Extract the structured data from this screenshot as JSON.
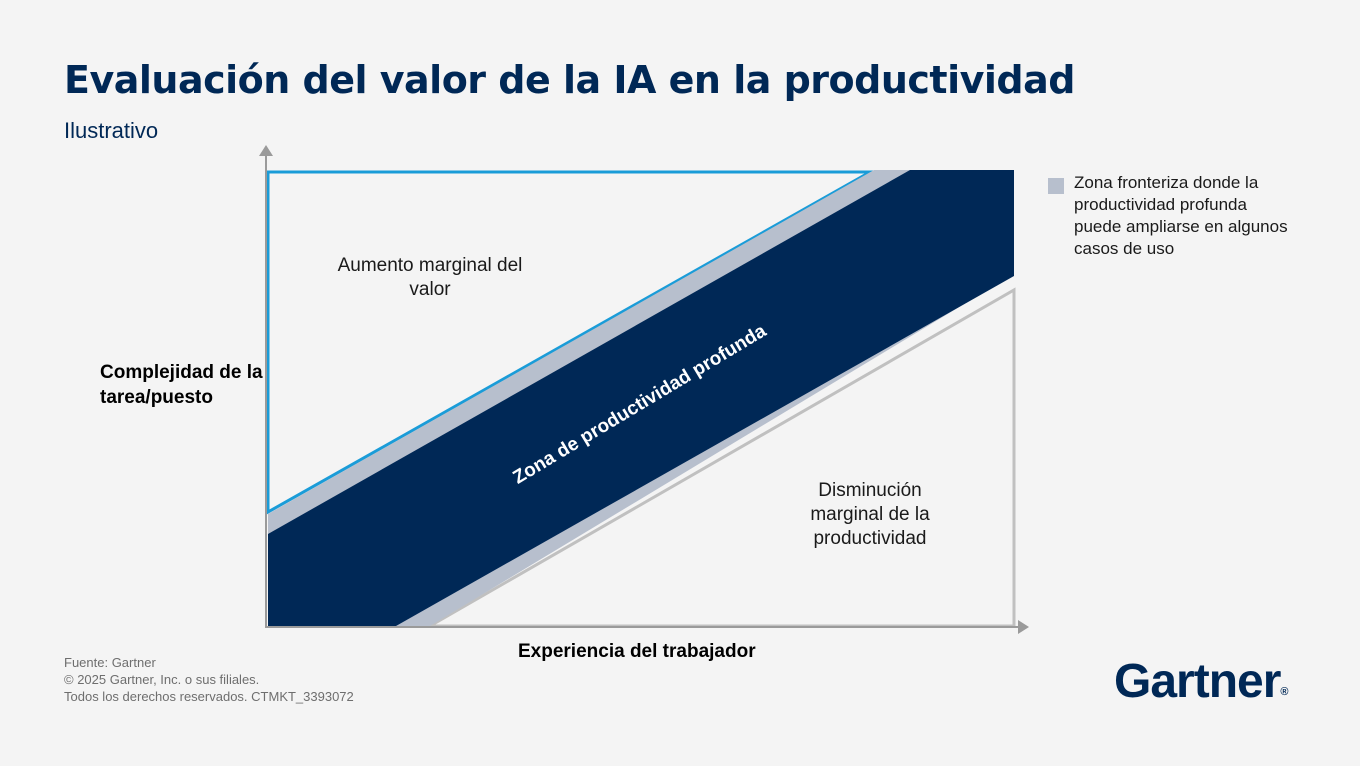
{
  "title": "Evaluación del valor de la IA en la productividad",
  "subtitle": "Ilustrativo",
  "axes": {
    "y_label": "Complejidad de la tarea/puesto",
    "x_label": "Experiencia del trabajador"
  },
  "zones": {
    "upper": "Aumento marginal del valor",
    "band": "Zona de productividad profunda",
    "lower": "Disminución marginal de la productividad"
  },
  "legend": {
    "text": "Zona fronteriza donde la productividad profunda puede ampliarse en algunos casos de uso",
    "swatch_color": "#b7bfcd"
  },
  "footer": {
    "source": "Fuente: Gartner",
    "copyright": "© 2025 Gartner, Inc. o sus filiales.",
    "rights": "Todos los derechos reservados. CTMKT_3393072"
  },
  "logo": {
    "text": "Gartner",
    "mark": "®"
  },
  "colors": {
    "navy": "#002856",
    "band_gray": "#b7bfcd",
    "upper_outline": "#1a9cd8",
    "lower_outline": "#c0c0c0"
  }
}
